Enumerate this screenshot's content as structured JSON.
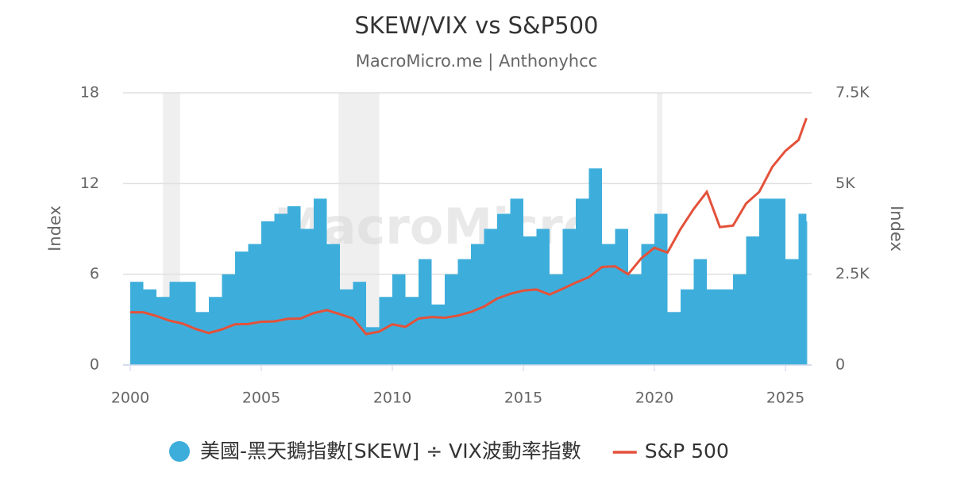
{
  "chart_data": {
    "type": "bar_line",
    "title": "SKEW/VIX vs S&P500",
    "subtitle": "MacroMicro.me | Anthonyhcc",
    "watermark": "MacroMicro",
    "y_label": "Index",
    "y2_label": "Index",
    "x": [
      2000,
      2000.5,
      2001,
      2001.5,
      2002,
      2002.5,
      2003,
      2003.5,
      2004,
      2004.5,
      2005,
      2005.5,
      2006,
      2006.5,
      2007,
      2007.5,
      2008,
      2008.5,
      2009,
      2009.5,
      2010,
      2010.5,
      2011,
      2011.5,
      2012,
      2012.5,
      2013,
      2013.5,
      2014,
      2014.5,
      2015,
      2015.5,
      2016,
      2016.5,
      2017,
      2017.5,
      2018,
      2018.5,
      2019,
      2019.5,
      2020,
      2020.5,
      2021,
      2021.5,
      2022,
      2022.5,
      2023,
      2023.5,
      2024,
      2024.5,
      2025,
      2025.5,
      2025.8
    ],
    "series": [
      {
        "name": "美國-黑天鵝指數[SKEW] ÷ VIX波動率指數",
        "color": "#3daedb",
        "kind": "bar",
        "values": [
          5.5,
          5,
          4.5,
          5.5,
          5.5,
          3.5,
          4.5,
          6,
          7.5,
          8,
          9.5,
          10,
          10.5,
          9,
          11,
          8,
          5,
          5.5,
          2.5,
          4.5,
          6,
          4.5,
          7,
          4,
          6,
          7,
          8,
          9,
          10,
          11,
          8.5,
          9,
          6,
          9,
          11,
          13,
          8,
          9,
          6,
          8,
          10,
          3.5,
          5,
          7,
          5,
          5,
          6,
          8.5,
          11,
          11,
          7,
          10,
          9.5
        ]
      },
      {
        "name": "S&P 500",
        "color": "#e4513a",
        "kind": "line",
        "axis": "y2",
        "values": [
          1450,
          1450,
          1350,
          1220,
          1140,
          990,
          880,
          980,
          1120,
          1130,
          1190,
          1200,
          1270,
          1280,
          1430,
          1510,
          1400,
          1280,
          850,
          920,
          1120,
          1050,
          1280,
          1320,
          1300,
          1360,
          1460,
          1610,
          1830,
          1960,
          2050,
          2080,
          1940,
          2100,
          2270,
          2420,
          2700,
          2720,
          2500,
          2940,
          3230,
          3100,
          3750,
          4300,
          4770,
          3800,
          3840,
          4450,
          4770,
          5460,
          5900,
          6200,
          6800
        ]
      }
    ],
    "bands": [
      [
        2001.25,
        2001.9
      ],
      [
        2007.95,
        2009.5
      ],
      [
        2020.1,
        2020.3
      ]
    ],
    "xlim": [
      2000,
      2026
    ],
    "xticks": [
      2000,
      2005,
      2010,
      2015,
      2020,
      2025
    ],
    "ylim": [
      0,
      18
    ],
    "yticks": [
      0,
      6,
      12,
      18
    ],
    "y2lim": [
      0,
      7500
    ],
    "y2ticks": [
      0,
      {
        "value": 2500,
        "label": "2.5K"
      },
      {
        "value": 5000,
        "label": "5K"
      },
      {
        "value": 7500,
        "label": "7.5K"
      }
    ],
    "grid": true
  }
}
